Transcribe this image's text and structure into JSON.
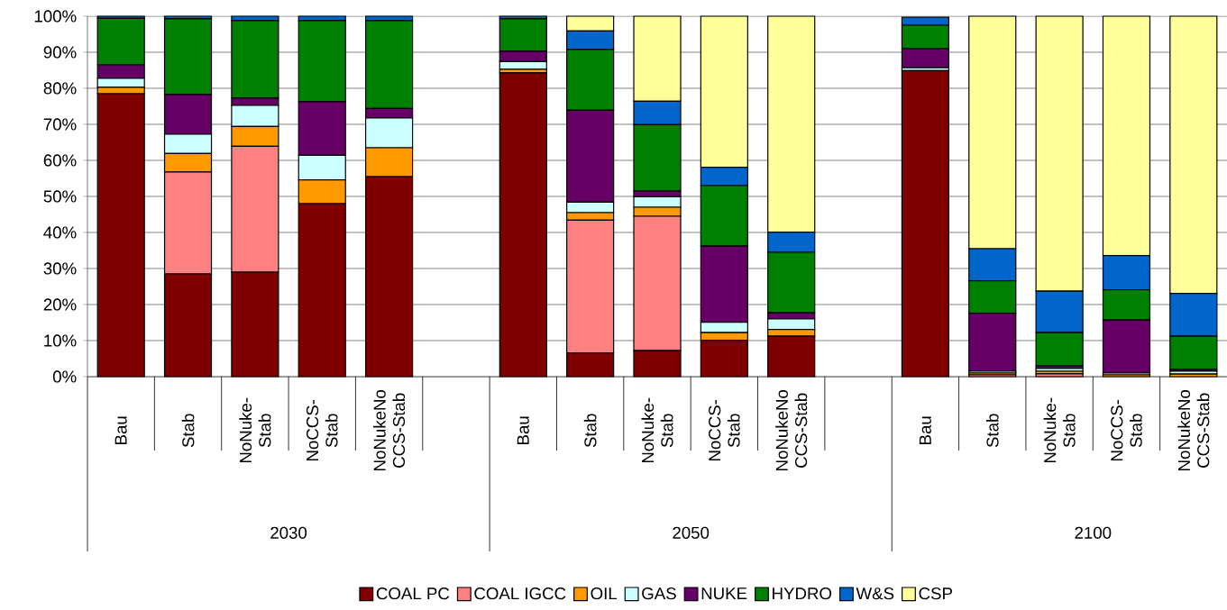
{
  "chart_data": {
    "type": "bar",
    "stacked": true,
    "grid": "y",
    "legend": "bottom",
    "categories": [
      "Bau",
      "Stab",
      "NoNuke-Stab",
      "NoCCS-Stab",
      "NoNukeNo CCS-Stab",
      null,
      "Bau",
      "Stab",
      "NoNuke-Stab",
      "NoCCS-Stab",
      "NoNukeNo CCS-Stab",
      null,
      "Bau",
      "Stab",
      "NoNuke-Stab",
      "NoCCS-Stab",
      "NoNukeNo CCS-Stab"
    ],
    "annotations": [
      "2030",
      "2050",
      "2100"
    ],
    "ylim": [
      0,
      100
    ],
    "yticks": [
      {
        "value": 0,
        "label": "0%"
      },
      {
        "value": 10,
        "label": "10%"
      },
      {
        "value": 20,
        "label": "20%"
      },
      {
        "value": 30,
        "label": "30%"
      },
      {
        "value": 40,
        "label": "40%"
      },
      {
        "value": 50,
        "label": "50%"
      },
      {
        "value": 60,
        "label": "60%"
      },
      {
        "value": 70,
        "label": "70%"
      },
      {
        "value": 80,
        "label": "80%"
      },
      {
        "value": 90,
        "label": "90%"
      },
      {
        "value": 100,
        "label": "100%"
      }
    ],
    "series": [
      {
        "name": "COAL PC",
        "color": "#800000",
        "values": [
          78.5,
          28.5,
          29,
          48,
          55.5,
          null,
          84.3,
          6.6,
          7.2,
          10.1,
          11.2,
          null,
          84.9,
          0,
          0,
          0,
          0
        ]
      },
      {
        "name": "COAL IGCC",
        "color": "#ff8080",
        "values": [
          0,
          28.3,
          34.9,
          0,
          0,
          null,
          0,
          36.8,
          37.3,
          0,
          0,
          null,
          0,
          0.5,
          0.8,
          0,
          0
        ]
      },
      {
        "name": "OIL",
        "color": "#ff9900",
        "values": [
          1.8,
          5.1,
          5.5,
          6.6,
          8,
          null,
          1,
          2.1,
          2.5,
          2.1,
          1.9,
          null,
          null,
          0.5,
          0.7,
          0.5,
          0.7
        ]
      },
      {
        "name": "GAS",
        "color": "#ccffff",
        "values": [
          2.5,
          5.4,
          5.9,
          6.8,
          8.3,
          null,
          2.1,
          2.9,
          2.9,
          2.9,
          2.9,
          null,
          0.8,
          0.5,
          0.8,
          0.5,
          0.8
        ]
      },
      {
        "name": "NUKE",
        "color": "#660066",
        "values": [
          3.7,
          11,
          2,
          14.9,
          2.6,
          null,
          2.9,
          25.5,
          1.6,
          21.1,
          1.7,
          null,
          5.3,
          16.1,
          0.7,
          14.7,
          0.5
        ]
      },
      {
        "name": "HYDRO",
        "color": "#008000",
        "values": [
          12.9,
          21,
          21.5,
          22.5,
          24.4,
          null,
          9,
          16.9,
          18.4,
          16.8,
          16.8,
          null,
          6.5,
          9,
          9.2,
          8.4,
          9.2
        ]
      },
      {
        "name": "W&S",
        "color": "#0066cc",
        "values": [
          0.6,
          0.7,
          1.2,
          1.2,
          1.2,
          null,
          0.7,
          5.1,
          6.5,
          5.1,
          5.6,
          null,
          2.2,
          8.9,
          11.5,
          9.5,
          11.9
        ]
      },
      {
        "name": "CSP",
        "color": "#ffff99",
        "values": [
          0,
          0,
          0,
          0,
          0,
          null,
          0,
          4.1,
          23.6,
          41.9,
          59.9,
          null,
          0,
          64.5,
          76.3,
          66.4,
          76.9
        ]
      }
    ]
  }
}
